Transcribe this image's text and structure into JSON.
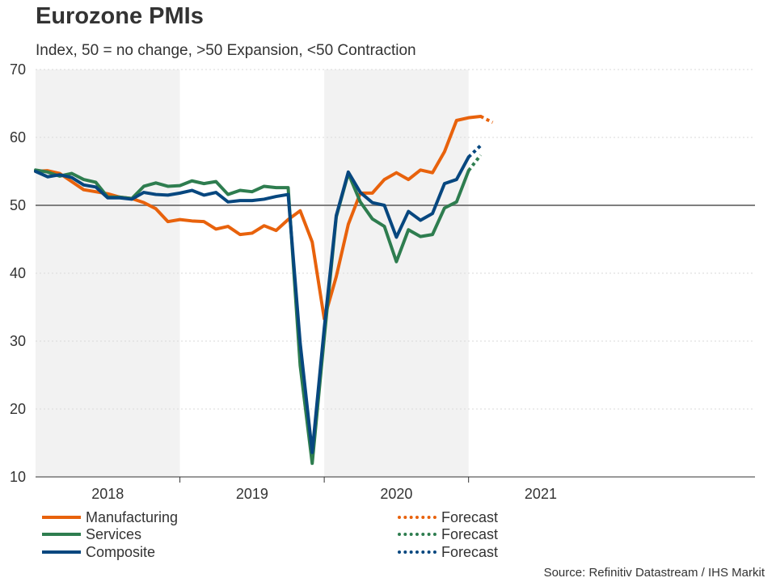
{
  "title": "Eurozone PMIs",
  "subtitle": "Index, 50 = no change, >50 Expansion, <50 Contraction",
  "source": "Source: Refinitiv Datastream / IHS Markit",
  "chart_data": {
    "type": "line",
    "x_start": "2018-01",
    "y_ticks": [
      10,
      20,
      30,
      40,
      50,
      60,
      70
    ],
    "ylim": [
      10,
      70
    ],
    "xlim": [
      "2018-01",
      "2021-05"
    ],
    "year_labels": [
      "2018",
      "2019",
      "2020",
      "2021"
    ],
    "reference_line": 50,
    "series": [
      {
        "name": "Manufacturing",
        "color": "#e8620c",
        "values": [
          55.0,
          55.1,
          54.7,
          53.5,
          52.3,
          52.0,
          51.7,
          51.2,
          51.0,
          50.4,
          49.5,
          47.6,
          47.9,
          47.7,
          47.6,
          46.5,
          46.9,
          45.7,
          45.9,
          47.0,
          46.3,
          47.9,
          49.2,
          44.6,
          33.3,
          39.5,
          47.2,
          51.8,
          51.8,
          53.8,
          54.8,
          53.8,
          55.2,
          54.8,
          57.9,
          62.5,
          62.9,
          63.1
        ],
        "forecast_label": "Forecast",
        "forecast": [
          63.1,
          62.2
        ]
      },
      {
        "name": "Services",
        "color": "#2e7d4f",
        "values": [
          55.2,
          54.9,
          54.3,
          54.7,
          53.8,
          53.4,
          51.2,
          51.2,
          51.0,
          52.8,
          53.3,
          52.8,
          52.9,
          53.6,
          53.2,
          53.5,
          51.6,
          52.2,
          52.0,
          52.8,
          52.6,
          52.6,
          26.4,
          12.0,
          30.5,
          48.3,
          54.7,
          50.5,
          48.0,
          46.9,
          41.7,
          46.4,
          45.4,
          45.7,
          49.6,
          50.5,
          55.1
        ],
        "forecast_label": "Forecast",
        "forecast": [
          55.1,
          57.4
        ]
      },
      {
        "name": "Composite",
        "color": "#07477f",
        "values": [
          55.0,
          54.2,
          54.5,
          54.1,
          53.0,
          52.7,
          51.1,
          51.1,
          50.9,
          51.9,
          51.6,
          51.5,
          51.8,
          52.2,
          51.5,
          51.9,
          50.5,
          50.7,
          50.7,
          50.9,
          51.3,
          51.6,
          29.7,
          13.6,
          31.9,
          48.5,
          54.9,
          51.9,
          50.4,
          50.0,
          45.3,
          49.1,
          47.8,
          48.8,
          53.2,
          53.8,
          57.1
        ],
        "forecast_label": "Forecast",
        "forecast": [
          57.1,
          58.8
        ]
      }
    ]
  }
}
